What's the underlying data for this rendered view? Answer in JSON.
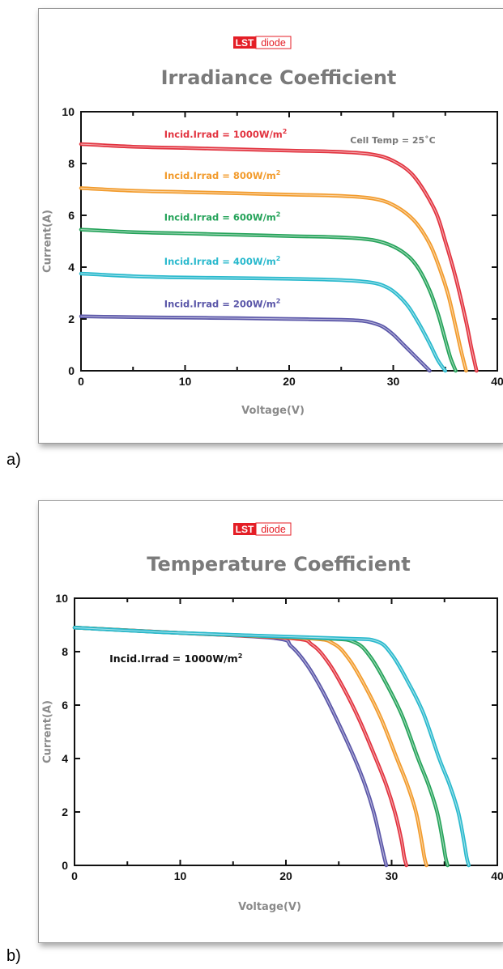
{
  "panels": [
    {
      "sublabel": "a)",
      "brand": {
        "lst": "LST",
        "diode": "diode",
        "color": "#e41e26"
      },
      "chart_data": {
        "type": "line",
        "title": "Irradiance Coefficient",
        "xlabel": "Voltage(V)",
        "ylabel": "Current(A)",
        "xlim": [
          0,
          40
        ],
        "ylim": [
          0,
          10
        ],
        "xticks": [
          0,
          10,
          20,
          30,
          40
        ],
        "yticks": [
          0,
          2,
          4,
          6,
          8,
          10
        ],
        "annotations": [
          "Cell Temp = 25˚C"
        ],
        "series": [
          {
            "name": "Incid.Irrad = 1000W/m2",
            "color": "#e2333f",
            "x": [
              0,
              5,
              10,
              15,
              20,
              25,
              28,
              30,
              32,
              34,
              35,
              36,
              37,
              37.5,
              38
            ],
            "y": [
              8.75,
              8.65,
              8.6,
              8.55,
              8.5,
              8.45,
              8.35,
              8.1,
              7.5,
              6.2,
              5.0,
              3.6,
              1.9,
              0.9,
              0
            ]
          },
          {
            "name": "Incid.Irrad = 800W/m2",
            "color": "#f29b2c",
            "x": [
              0,
              5,
              10,
              15,
              20,
              25,
              28,
              30,
              32,
              33.5,
              34.5,
              35.3,
              36,
              36.5,
              37
            ],
            "y": [
              7.05,
              6.95,
              6.9,
              6.85,
              6.8,
              6.75,
              6.65,
              6.4,
              5.8,
              4.9,
              3.9,
              2.9,
              1.7,
              0.8,
              0
            ]
          },
          {
            "name": "Incid.Irrad = 600W/m2",
            "color": "#25a35a",
            "x": [
              0,
              5,
              10,
              15,
              20,
              25,
              28,
              30,
              31.5,
              32.5,
              33.5,
              34.3,
              35,
              35.5,
              36
            ],
            "y": [
              5.45,
              5.35,
              5.3,
              5.25,
              5.2,
              5.15,
              5.05,
              4.8,
              4.4,
              3.9,
              3.1,
              2.2,
              1.2,
              0.5,
              0
            ]
          },
          {
            "name": "Incid.Irrad = 400W/m2",
            "color": "#29b9cd",
            "x": [
              0,
              5,
              10,
              15,
              20,
              25,
              28,
              29.5,
              30.5,
              31.5,
              32.5,
              33.5,
              34.3,
              35
            ],
            "y": [
              3.75,
              3.65,
              3.6,
              3.58,
              3.55,
              3.5,
              3.4,
              3.2,
              2.9,
              2.45,
              1.8,
              1.05,
              0.4,
              0
            ]
          },
          {
            "name": "Incid.Irrad = 200W/m2",
            "color": "#5a56a8",
            "x": [
              0,
              5,
              10,
              15,
              20,
              25,
              27,
              28,
              29,
              30,
              31,
              32,
              33,
              33.5
            ],
            "y": [
              2.1,
              2.07,
              2.05,
              2.03,
              2.0,
              1.97,
              1.93,
              1.85,
              1.7,
              1.4,
              1.0,
              0.6,
              0.2,
              0
            ]
          }
        ],
        "labels": [
          {
            "text": "Incid.Irrad = 1000W/m",
            "sup": "2",
            "x": 8,
            "y": 9.0,
            "color": "#e2333f"
          },
          {
            "text": "Incid.Irrad = 800W/m",
            "sup": "2",
            "x": 8,
            "y": 7.4,
            "color": "#f29b2c"
          },
          {
            "text": "Incid.Irrad = 600W/m",
            "sup": "2",
            "x": 8,
            "y": 5.8,
            "color": "#25a35a"
          },
          {
            "text": "Incid.Irrad = 400W/m",
            "sup": "2",
            "x": 8,
            "y": 4.1,
            "color": "#29b9cd"
          },
          {
            "text": "Incid.Irrad = 200W/m",
            "sup": "2",
            "x": 8,
            "y": 2.45,
            "color": "#5a56a8"
          }
        ],
        "axis_label_color": "#8a8a8a",
        "title_color": "#7a7a7a"
      }
    },
    {
      "sublabel": "b)",
      "brand": {
        "lst": "LST",
        "diode": "diode",
        "color": "#e41e26"
      },
      "chart_data": {
        "type": "line",
        "title": "Temperature Coefficient",
        "xlabel": "Voltage(V)",
        "ylabel": "Current(A)",
        "xlim": [
          0,
          40
        ],
        "ylim": [
          0,
          10
        ],
        "xticks": [
          0,
          10,
          20,
          30,
          40
        ],
        "yticks": [
          0,
          2,
          4,
          6,
          8,
          10
        ],
        "annotations": [
          "Incid.Irrad = 1000W/m2"
        ],
        "series": [
          {
            "color": "#5a56a8",
            "x": [
              0,
              10,
              19,
              20.5,
              22,
              23.5,
              25,
              26.5,
              27.5,
              28.3,
              28.9,
              29.3,
              29.5
            ],
            "y": [
              8.9,
              8.7,
              8.5,
              8.2,
              7.5,
              6.5,
              5.3,
              4.0,
              3.0,
              2.0,
              1.0,
              0.3,
              0
            ]
          },
          {
            "color": "#e2333f",
            "x": [
              0,
              10,
              20.5,
              22.5,
              24,
              25.5,
              27,
              28.5,
              29.5,
              30.3,
              30.9,
              31.2,
              31.4
            ],
            "y": [
              8.9,
              8.7,
              8.5,
              8.25,
              7.6,
              6.6,
              5.4,
              4.0,
              3.0,
              2.0,
              1.0,
              0.3,
              0
            ]
          },
          {
            "color": "#f29b2c",
            "x": [
              0,
              10,
              22,
              24.5,
              26,
              27.5,
              29,
              30.5,
              31.5,
              32.3,
              32.8,
              33.1,
              33.3
            ],
            "y": [
              8.9,
              8.7,
              8.5,
              8.3,
              7.7,
              6.7,
              5.5,
              4.0,
              3.0,
              2.0,
              1.0,
              0.3,
              0
            ]
          },
          {
            "color": "#25a35a",
            "x": [
              0,
              10,
              23.5,
              26.5,
              28,
              29.5,
              31,
              32.5,
              33.5,
              34.3,
              34.8,
              35.1,
              35.3
            ],
            "y": [
              8.9,
              8.7,
              8.5,
              8.35,
              7.8,
              6.8,
              5.6,
              4.0,
              3.0,
              2.0,
              1.0,
              0.3,
              0
            ]
          },
          {
            "color": "#29b9cd",
            "x": [
              0,
              10,
              25,
              28.5,
              30,
              31.5,
              33,
              34.5,
              35.5,
              36.3,
              36.8,
              37.1,
              37.3
            ],
            "y": [
              8.9,
              8.7,
              8.5,
              8.4,
              7.9,
              6.9,
              5.7,
              4.0,
              3.0,
              2.0,
              1.0,
              0.3,
              0
            ]
          }
        ],
        "labels": [
          {
            "text": "Incid.Irrad = 1000W/m",
            "sup": "2",
            "x": 3.3,
            "y": 7.6,
            "color": "#111111"
          }
        ],
        "axis_label_color": "#8a8a8a",
        "title_color": "#7a7a7a"
      }
    }
  ]
}
